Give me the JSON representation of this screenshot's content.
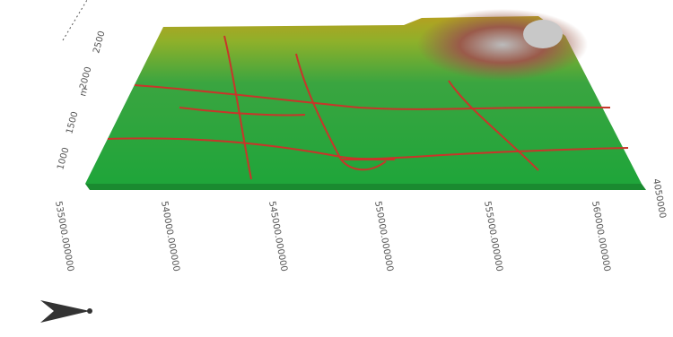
{
  "x_axis": {
    "labels": [
      "535000.000000",
      "540000.000000",
      "545000.000000",
      "550000.000000",
      "555000.000000",
      "560000.000000"
    ]
  },
  "z_axis": {
    "labels": [
      "1000",
      "1500",
      "2000",
      "2500"
    ],
    "unit": "m"
  },
  "y_axis": {
    "labels": [
      "4050000"
    ]
  }
}
